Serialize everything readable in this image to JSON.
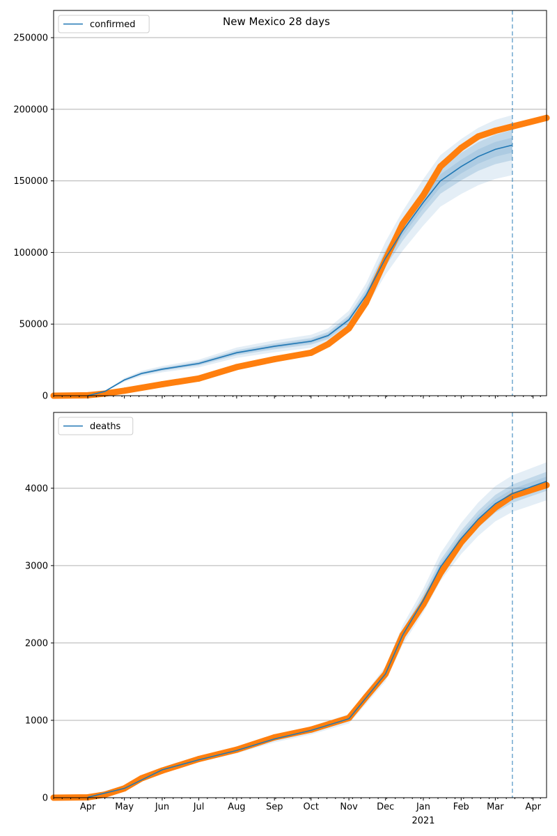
{
  "chart_data": [
    {
      "type": "line",
      "title": "New Mexico 28 days",
      "legend": {
        "label": "confirmed",
        "placement": "top-left"
      },
      "x_range": [
        "2020-03-04",
        "2021-04-12"
      ],
      "ylim": [
        0,
        269000
      ],
      "yticks": [
        0,
        50000,
        100000,
        150000,
        200000,
        250000
      ],
      "grid": "horizontal",
      "forecast_start": "2021-03-15",
      "observed": {
        "dates": [
          "2020-03-04",
          "2020-04-01",
          "2020-04-15",
          "2020-05-01",
          "2020-06-01",
          "2020-07-01",
          "2020-08-01",
          "2020-09-01",
          "2020-10-01",
          "2020-10-15",
          "2020-11-01",
          "2020-11-15",
          "2020-12-01",
          "2020-12-15",
          "2021-01-01",
          "2021-01-15",
          "2021-02-01",
          "2021-02-15",
          "2021-03-01",
          "2021-03-15",
          "2021-04-12"
        ],
        "values": [
          0,
          300,
          1500,
          3500,
          8000,
          12000,
          20000,
          25500,
          30000,
          36000,
          47000,
          65000,
          95000,
          120000,
          140000,
          160000,
          173000,
          181000,
          185000,
          188000,
          194000
        ]
      },
      "model": {
        "dates": [
          "2020-04-01",
          "2020-04-15",
          "2020-05-01",
          "2020-05-15",
          "2020-06-01",
          "2020-07-01",
          "2020-08-01",
          "2020-09-01",
          "2020-10-01",
          "2020-10-15",
          "2020-11-01",
          "2020-11-15",
          "2020-12-01",
          "2020-12-15",
          "2021-01-01",
          "2021-01-15",
          "2021-02-01",
          "2021-02-15",
          "2021-03-01",
          "2021-03-15"
        ],
        "mean": [
          0,
          3000,
          11000,
          15500,
          18500,
          22500,
          30000,
          34500,
          38000,
          42000,
          53000,
          70000,
          96000,
          115000,
          135000,
          150000,
          160000,
          167000,
          172000,
          175000
        ],
        "band_inner_frac": 0.06,
        "band_outer_frac": 0.12
      }
    },
    {
      "type": "line",
      "legend": {
        "label": "deaths",
        "placement": "top-left"
      },
      "x_range": [
        "2020-03-04",
        "2021-04-12"
      ],
      "ylim": [
        0,
        4980
      ],
      "yticks": [
        0,
        1000,
        2000,
        3000,
        4000
      ],
      "grid": "horizontal",
      "forecast_start": "2021-03-15",
      "xticks": [
        "Apr",
        "May",
        "Jun",
        "Jul",
        "Aug",
        "Sep",
        "Oct",
        "Nov",
        "Dec",
        "Jan",
        "Feb",
        "Mar",
        "Apr"
      ],
      "xtick_dates": [
        "2020-04-01",
        "2020-05-01",
        "2020-06-01",
        "2020-07-01",
        "2020-08-01",
        "2020-09-01",
        "2020-10-01",
        "2020-11-01",
        "2020-12-01",
        "2021-01-01",
        "2021-02-01",
        "2021-03-01",
        "2021-04-01"
      ],
      "year_label": "2021",
      "observed": {
        "dates": [
          "2020-03-04",
          "2020-04-01",
          "2020-04-15",
          "2020-05-01",
          "2020-05-15",
          "2020-06-01",
          "2020-07-01",
          "2020-08-01",
          "2020-09-01",
          "2020-10-01",
          "2020-11-01",
          "2020-11-15",
          "2020-12-01",
          "2020-12-15",
          "2021-01-01",
          "2021-01-15",
          "2021-02-01",
          "2021-02-15",
          "2021-03-01",
          "2021-03-15",
          "2021-04-12"
        ],
        "values": [
          0,
          5,
          40,
          120,
          250,
          350,
          500,
          620,
          780,
          880,
          1030,
          1300,
          1600,
          2100,
          2500,
          2900,
          3300,
          3550,
          3750,
          3900,
          4040
        ]
      },
      "model": {
        "dates": [
          "2020-04-01",
          "2020-05-01",
          "2020-06-01",
          "2020-07-01",
          "2020-08-01",
          "2020-09-01",
          "2020-10-01",
          "2020-11-01",
          "2020-11-15",
          "2020-12-01",
          "2020-12-15",
          "2021-01-01",
          "2021-01-15",
          "2021-02-01",
          "2021-02-15",
          "2021-03-01",
          "2021-03-15",
          "2021-04-12"
        ],
        "mean": [
          5,
          120,
          360,
          490,
          610,
          760,
          870,
          1020,
          1290,
          1600,
          2100,
          2550,
          2980,
          3350,
          3600,
          3800,
          3930,
          4090
        ],
        "band_inner_frac": 0.03,
        "band_outer_frac": 0.06
      }
    }
  ]
}
